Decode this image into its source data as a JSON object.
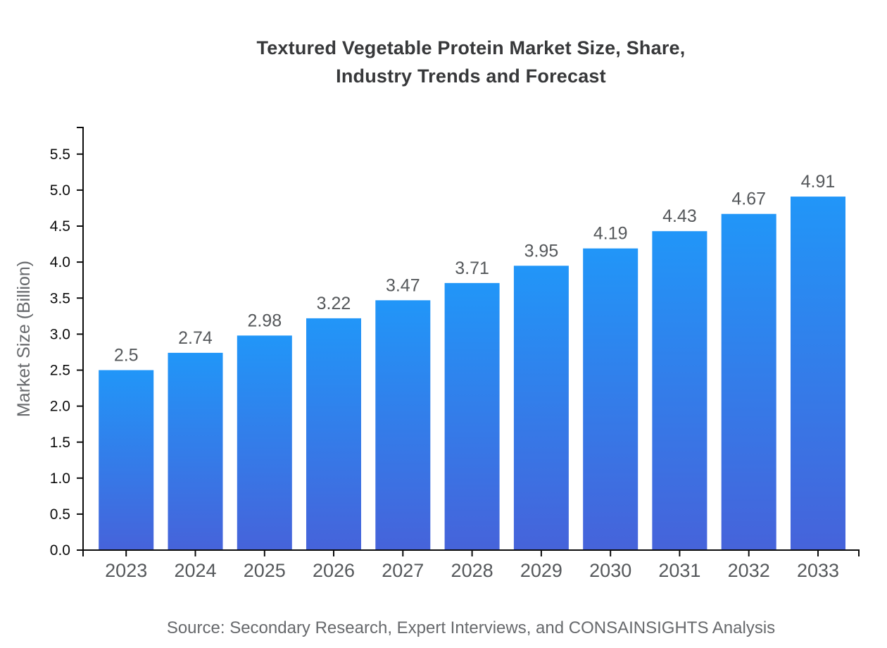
{
  "page": {
    "background": "#ffffff"
  },
  "chart_data": {
    "type": "bar",
    "title": "Textured Vegetable Protein Market Size, Share, Industry Trends and Forecast",
    "title_lines": [
      "Textured Vegetable Protein Market Size, Share,",
      "Industry Trends and Forecast"
    ],
    "categories": [
      "2023",
      "2024",
      "2025",
      "2026",
      "2027",
      "2028",
      "2029",
      "2030",
      "2031",
      "2032",
      "2033"
    ],
    "values": [
      2.5,
      2.74,
      2.98,
      3.22,
      3.47,
      3.71,
      3.95,
      4.19,
      4.43,
      4.67,
      4.91
    ],
    "value_labels": [
      "2.5",
      "2.74",
      "2.98",
      "3.22",
      "3.47",
      "3.71",
      "3.95",
      "4.19",
      "4.43",
      "4.67",
      "4.91"
    ],
    "xlabel": "",
    "ylabel": "Market Size (Billion)",
    "ylim": [
      0,
      5.87
    ],
    "y_ticks": [
      {
        "value": 0.0,
        "label": "0.0"
      },
      {
        "value": 0.5,
        "label": "0.5"
      },
      {
        "value": 1.0,
        "label": "1.0"
      },
      {
        "value": 1.5,
        "label": "1.5"
      },
      {
        "value": 2.0,
        "label": "2.0"
      },
      {
        "value": 2.5,
        "label": "2.5"
      },
      {
        "value": 3.0,
        "label": "3.0"
      },
      {
        "value": 3.5,
        "label": "3.5"
      },
      {
        "value": 4.0,
        "label": "4.0"
      },
      {
        "value": 4.5,
        "label": "4.5"
      },
      {
        "value": 5.0,
        "label": "5.0"
      },
      {
        "value": 5.5,
        "label": "5.5"
      }
    ],
    "grid": false,
    "legend": null,
    "bar_color_top": "#2196f8",
    "bar_color_bottom": "#4663da",
    "source": "Source: Secondary Research, Expert Interviews, and CONSAINSIGHTS Analysis"
  },
  "colors": {
    "title": "#37383a",
    "axis": "#0b0b0b",
    "y_tick_label": "#0b0b0b",
    "x_tick_label": "#55585b",
    "value_label": "#55585b",
    "axis_label": "#67696c",
    "source": "#67696c"
  }
}
